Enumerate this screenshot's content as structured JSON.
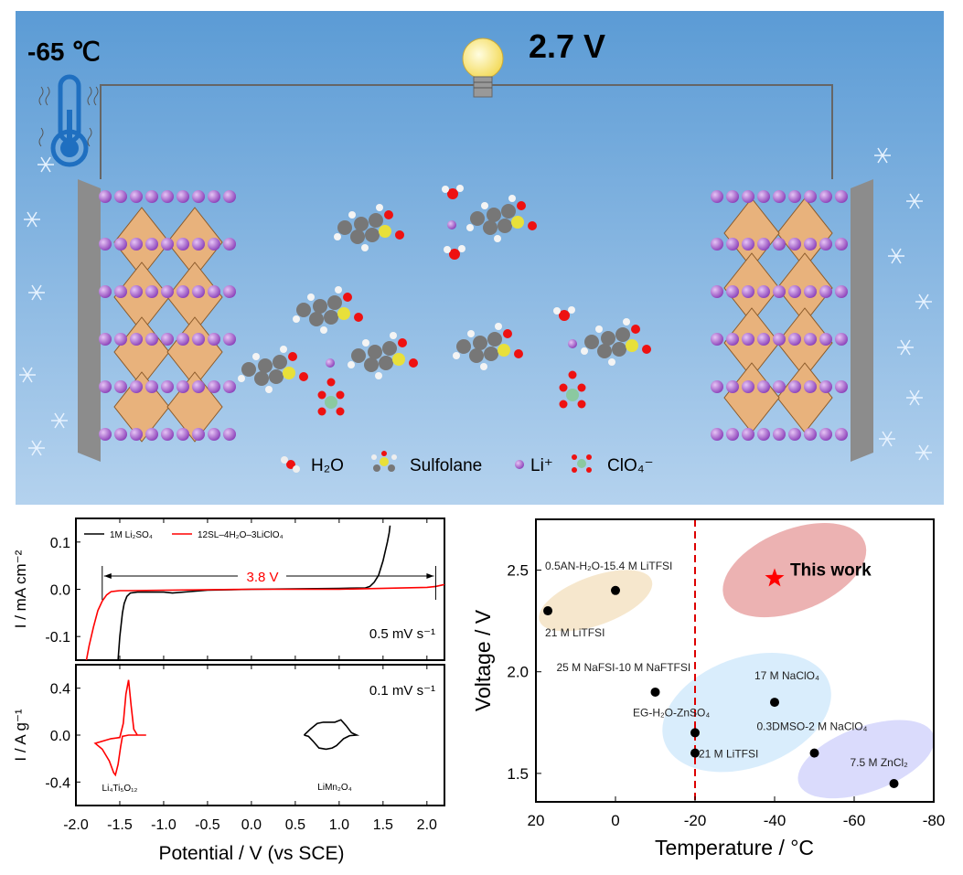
{
  "schematic": {
    "temperature": "-65 ℃",
    "voltage": "2.7 V",
    "legend": [
      {
        "label": "H₂O",
        "icon": "water-molecule-icon"
      },
      {
        "label": "Sulfolane",
        "icon": "sulfolane-molecule-icon"
      },
      {
        "label": "Li⁺",
        "icon": "lithium-ion-icon"
      },
      {
        "label": "ClO₄⁻",
        "icon": "perchlorate-icon"
      }
    ],
    "colors": {
      "background_top": "#5b9bd5",
      "background_bottom": "#b4d2ee",
      "octahedra": "#e8b27c",
      "li_sphere": "#a05ac8",
      "thermometer": "#1f6fc0"
    }
  },
  "chart_data": [
    {
      "type": "line",
      "title": "",
      "xlabel": "Potential / V (vs SCE)",
      "ylabel": "I / mA cm⁻²",
      "xlim": [
        -2.0,
        2.2
      ],
      "ylim": [
        -0.15,
        0.15
      ],
      "xticks": [
        "-2.0",
        "-1.5",
        "-1.0",
        "-0.5",
        "0.0",
        "0.5",
        "1.0",
        "1.5",
        "2.0"
      ],
      "yticks": [
        "0.1",
        "0.0",
        "-0.1"
      ],
      "annotation": "3.8 V",
      "window": [
        -1.7,
        2.1
      ],
      "rate_label": "0.5 mV s⁻¹",
      "legend_position": "top-left",
      "series": [
        {
          "name": "1M Li₂SO₄",
          "color": "#000000",
          "x": [
            -1.52,
            -1.5,
            -1.47,
            -1.45,
            -1.42,
            -1.38,
            -1.3,
            -1.0,
            -0.9,
            -0.5,
            0.0,
            1.0,
            1.3,
            1.35,
            1.4,
            1.45,
            1.5,
            1.55,
            1.57,
            1.58
          ],
          "y": [
            -0.15,
            -0.1,
            -0.05,
            -0.03,
            -0.015,
            -0.008,
            -0.006,
            -0.006,
            -0.008,
            -0.002,
            0.0,
            0.002,
            0.003,
            0.006,
            0.015,
            0.03,
            0.06,
            0.1,
            0.12,
            0.135
          ]
        },
        {
          "name": "12SL–4H₂O–3LiClO₄",
          "color": "#ff0000",
          "x": [
            -1.88,
            -1.85,
            -1.8,
            -1.75,
            -1.7,
            -1.65,
            -1.6,
            -1.5,
            -1.4,
            -1.0,
            0.0,
            1.0,
            2.0,
            2.1,
            2.2
          ],
          "y": [
            -0.15,
            -0.12,
            -0.08,
            -0.045,
            -0.025,
            -0.012,
            -0.005,
            -0.003,
            -0.003,
            -0.002,
            0.0,
            0.0,
            0.004,
            0.006,
            0.01
          ]
        }
      ]
    },
    {
      "type": "line",
      "title": "",
      "xlabel": "Potential / V (vs SCE)",
      "ylabel": "I / A g⁻¹",
      "xlim": [
        -2.0,
        2.2
      ],
      "ylim": [
        -0.6,
        0.6
      ],
      "xticks": [
        "-2.0",
        "-1.5",
        "-1.0",
        "-0.5",
        "0.0",
        "0.5",
        "1.0",
        "1.5",
        "2.0"
      ],
      "yticks": [
        "0.4",
        "0.0",
        "-0.4"
      ],
      "rate_label": "0.1 mV s⁻¹",
      "series": [
        {
          "name": "Li₄Ti₅O₁₂",
          "color": "#ff0000",
          "x": [
            -1.2,
            -1.3,
            -1.34,
            -1.37,
            -1.4,
            -1.43,
            -1.46,
            -1.5,
            -1.6,
            -1.78,
            -1.7,
            -1.62,
            -1.57,
            -1.55,
            -1.52,
            -1.49,
            -1.47,
            -1.4,
            -1.2
          ],
          "y": [
            0.0,
            0.0,
            0.05,
            0.25,
            0.47,
            0.35,
            0.1,
            -0.02,
            -0.03,
            -0.07,
            -0.12,
            -0.22,
            -0.32,
            -0.34,
            -0.25,
            -0.1,
            -0.01,
            0.0,
            0.0
          ]
        },
        {
          "name": "LiMn₂O₄",
          "color": "#000000",
          "x": [
            0.6,
            0.67,
            0.75,
            0.82,
            0.95,
            1.02,
            1.08,
            1.14,
            1.2,
            1.12,
            1.05,
            0.97,
            0.92,
            0.85,
            0.77,
            0.7,
            0.65,
            0.6
          ],
          "y": [
            0.0,
            0.05,
            0.1,
            0.11,
            0.11,
            0.13,
            0.08,
            0.02,
            0.0,
            -0.005,
            -0.03,
            -0.09,
            -0.11,
            -0.12,
            -0.11,
            -0.05,
            -0.01,
            0.0
          ]
        }
      ]
    },
    {
      "type": "scatter",
      "title": "",
      "xlabel": "Temperature / °C",
      "ylabel": "Voltage / V",
      "xlim": [
        20,
        -80
      ],
      "ylim": [
        1.36,
        2.75
      ],
      "xticks": [
        "20",
        "0",
        "-20",
        "-40",
        "-60",
        "-80"
      ],
      "yticks": [
        "2.5",
        "2.0",
        "1.5"
      ],
      "reference_line_x": -20,
      "points": [
        {
          "label": "21 M LiTFSI",
          "x": 17,
          "y": 2.3
        },
        {
          "label": "0.5AN-H₂O-15.4 M LiTFSI",
          "x": 0,
          "y": 2.4
        },
        {
          "label": "25 M NaFSI-10 M NaFTFSI",
          "x": -10,
          "y": 1.9
        },
        {
          "label": "EG-H₂O-ZnSO₄",
          "x": -20,
          "y": 1.7
        },
        {
          "label": "21 M LiTFSI",
          "x": -20,
          "y": 1.6
        },
        {
          "label": "17 M NaClO₄",
          "x": -40,
          "y": 1.85
        },
        {
          "label": "0.3DMSO-2 M NaClO₄",
          "x": -50,
          "y": 1.6
        },
        {
          "label": "7.5 M ZnCl₂",
          "x": -70,
          "y": 1.45
        }
      ],
      "highlight": {
        "label": "This work",
        "x": -40,
        "y": 2.46,
        "color": "#ff0000"
      },
      "regions": [
        {
          "color": "#f5e3c4",
          "cx": 5,
          "cy": 2.35,
          "rx": 15,
          "ry": 0.12
        },
        {
          "color": "#e9a4a4",
          "cx": -45,
          "cy": 2.5,
          "rx": 19,
          "ry": 0.2
        },
        {
          "color": "#d2eafb",
          "cx": -33,
          "cy": 1.8,
          "rx": 22,
          "ry": 0.27
        },
        {
          "color": "#d3d5fb",
          "cx": -63,
          "cy": 1.57,
          "rx": 18,
          "ry": 0.16
        }
      ]
    }
  ]
}
